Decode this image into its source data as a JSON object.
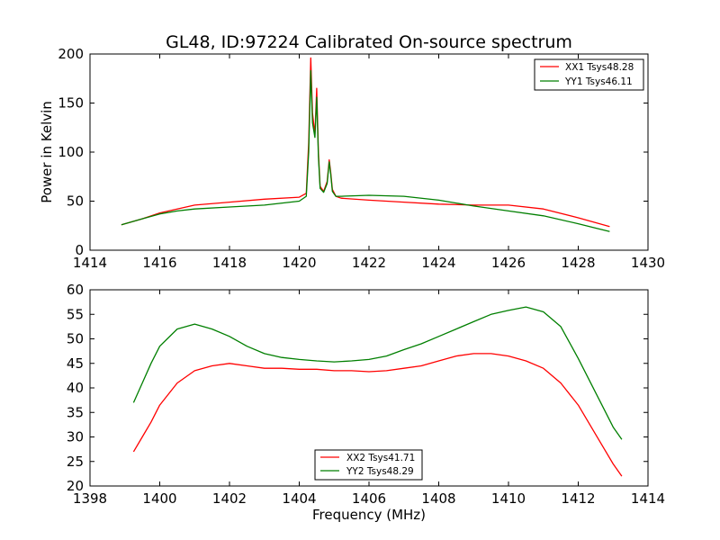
{
  "chart_data": [
    {
      "type": "line",
      "title": "GL48, ID:97224 Calibrated On-source spectrum",
      "xlabel": "",
      "ylabel": "Power in Kelvin",
      "xlim": [
        1414,
        1430
      ],
      "ylim": [
        0,
        200
      ],
      "xticks": [
        1414,
        1416,
        1418,
        1420,
        1422,
        1424,
        1426,
        1428,
        1430
      ],
      "yticks": [
        0,
        50,
        100,
        150,
        200
      ],
      "legend_position": "top-right",
      "grid": false,
      "series": [
        {
          "name": "XX1 Tsys48.28",
          "color": "#ff0000",
          "x": [
            1414.9,
            1415.5,
            1416.0,
            1416.5,
            1417.0,
            1418.0,
            1419.0,
            1420.0,
            1420.2,
            1420.27,
            1420.33,
            1420.38,
            1420.45,
            1420.5,
            1420.55,
            1420.6,
            1420.7,
            1420.8,
            1420.86,
            1420.9,
            1420.95,
            1421.05,
            1421.2,
            1422.0,
            1423.0,
            1424.0,
            1425.0,
            1426.0,
            1427.0,
            1428.0,
            1428.9
          ],
          "y": [
            26,
            32,
            38,
            42,
            46,
            49,
            52,
            54,
            58,
            110,
            196,
            140,
            118,
            165,
            100,
            65,
            60,
            70,
            92,
            80,
            62,
            55,
            53,
            51,
            49,
            47,
            46,
            46,
            42,
            33,
            24
          ]
        },
        {
          "name": "YY1 Tsys46.11",
          "color": "#007f00",
          "x": [
            1414.9,
            1415.5,
            1416.0,
            1416.5,
            1417.0,
            1418.0,
            1419.0,
            1420.0,
            1420.2,
            1420.27,
            1420.33,
            1420.38,
            1420.45,
            1420.5,
            1420.55,
            1420.6,
            1420.7,
            1420.8,
            1420.86,
            1420.9,
            1420.95,
            1421.05,
            1421.2,
            1422.0,
            1423.0,
            1424.0,
            1425.0,
            1426.0,
            1427.0,
            1428.0,
            1428.9
          ],
          "y": [
            26,
            32,
            37,
            40,
            42,
            44,
            46,
            50,
            55,
            100,
            183,
            130,
            115,
            156,
            95,
            63,
            59,
            68,
            90,
            78,
            60,
            55,
            55,
            56,
            55,
            51,
            45,
            40,
            35,
            27,
            19
          ]
        }
      ]
    },
    {
      "type": "line",
      "title": "",
      "xlabel": "Frequency (MHz)",
      "ylabel": "",
      "xlim": [
        1398,
        1414
      ],
      "ylim": [
        20,
        60
      ],
      "xticks": [
        1398,
        1400,
        1402,
        1404,
        1406,
        1408,
        1410,
        1412,
        1414
      ],
      "yticks": [
        20,
        25,
        30,
        35,
        40,
        45,
        50,
        55,
        60
      ],
      "legend_position": "bottom-center",
      "grid": false,
      "series": [
        {
          "name": "XX2 Tsys41.71",
          "color": "#ff0000",
          "x": [
            1399.25,
            1399.5,
            1399.75,
            1400.0,
            1400.5,
            1401.0,
            1401.5,
            1402.0,
            1402.5,
            1403.0,
            1403.5,
            1404.0,
            1404.5,
            1405.0,
            1405.5,
            1406.0,
            1406.5,
            1407.0,
            1407.5,
            1408.0,
            1408.5,
            1409.0,
            1409.5,
            1410.0,
            1410.5,
            1411.0,
            1411.5,
            1412.0,
            1412.5,
            1413.0,
            1413.25
          ],
          "y": [
            27,
            30,
            33,
            36.5,
            41,
            43.5,
            44.5,
            45,
            44.5,
            44,
            44,
            43.8,
            43.8,
            43.5,
            43.5,
            43.3,
            43.5,
            44,
            44.5,
            45.5,
            46.5,
            47,
            47,
            46.5,
            45.5,
            44,
            41,
            36.5,
            30.5,
            24.5,
            22
          ]
        },
        {
          "name": "YY2 Tsys48.29",
          "color": "#007f00",
          "x": [
            1399.25,
            1399.5,
            1399.75,
            1400.0,
            1400.5,
            1401.0,
            1401.5,
            1402.0,
            1402.5,
            1403.0,
            1403.5,
            1404.0,
            1404.5,
            1405.0,
            1405.5,
            1406.0,
            1406.5,
            1407.0,
            1407.5,
            1408.0,
            1408.5,
            1409.0,
            1409.5,
            1410.0,
            1410.5,
            1411.0,
            1411.5,
            1412.0,
            1412.5,
            1413.0,
            1413.25
          ],
          "y": [
            37,
            41,
            45,
            48.5,
            52,
            53,
            52,
            50.5,
            48.5,
            47,
            46.2,
            45.8,
            45.5,
            45.3,
            45.5,
            45.8,
            46.5,
            47.8,
            49,
            50.5,
            52,
            53.5,
            55,
            55.8,
            56.5,
            55.5,
            52.5,
            46,
            39,
            32,
            29.5
          ]
        }
      ]
    }
  ]
}
